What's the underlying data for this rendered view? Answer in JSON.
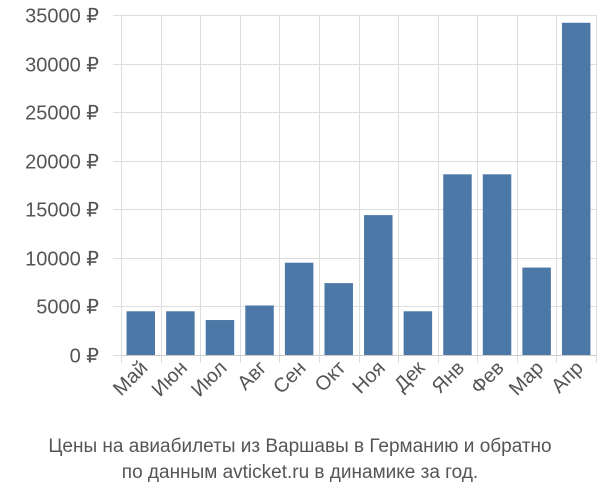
{
  "chart_data": {
    "type": "bar",
    "categories": [
      "Май",
      "Июн",
      "Июл",
      "Авг",
      "Сен",
      "Окт",
      "Ноя",
      "Дек",
      "Янв",
      "Фев",
      "Мар",
      "Апр"
    ],
    "values": [
      4500,
      4500,
      3600,
      5100,
      9500,
      7400,
      14400,
      4500,
      18600,
      18600,
      9000,
      34200
    ],
    "ylim": [
      0,
      35000
    ],
    "yticks": [
      0,
      5000,
      10000,
      15000,
      20000,
      25000,
      30000,
      35000
    ],
    "y_tick_suffix": " ₽",
    "grid": true,
    "bar_color": "#4c78a8",
    "caption_line1": "Цены на авиабилеты из Варшавы в Германию и обратно",
    "caption_line2": "по данным avticket.ru в динамике за год."
  }
}
